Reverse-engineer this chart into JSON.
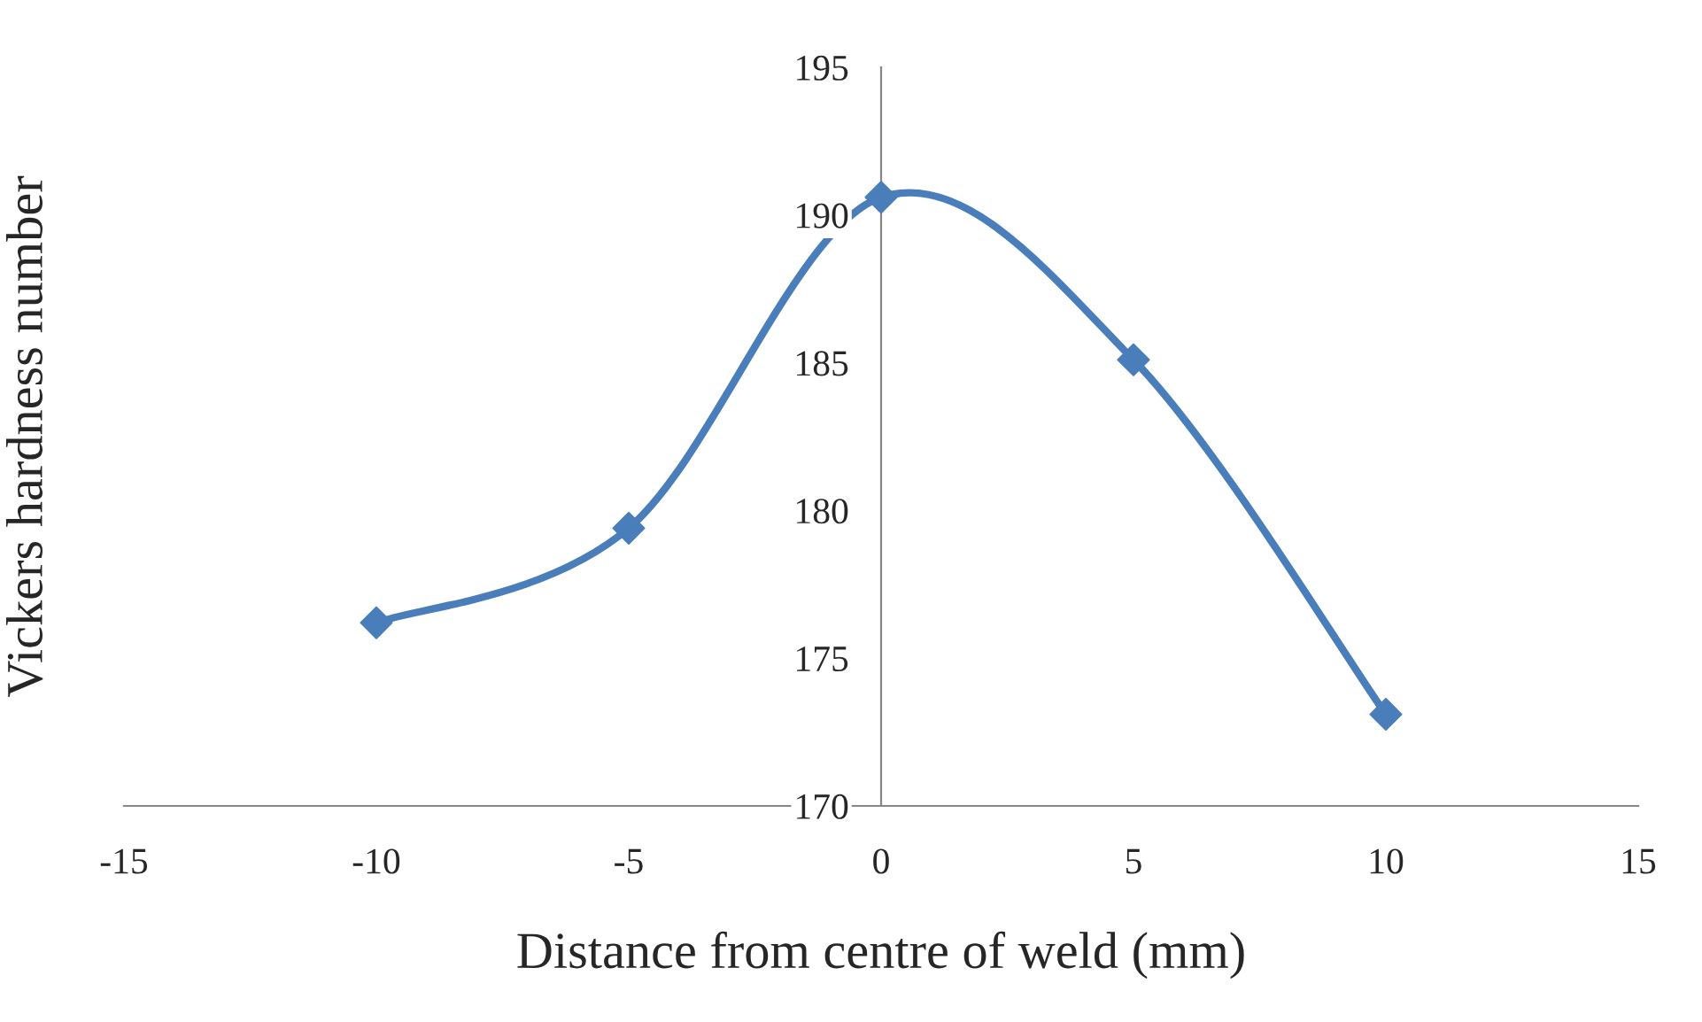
{
  "chart_data": {
    "type": "line",
    "xlabel": "Distance from centre of weld (mm)",
    "ylabel": "Vickers hardness number",
    "x": [
      -10,
      -5,
      0,
      5,
      10
    ],
    "series": [
      {
        "color": "#4a7ebb",
        "values": [
          176.2,
          179.4,
          190.6,
          185.1,
          173.1
        ]
      }
    ],
    "xlim": [
      -15,
      15
    ],
    "xticks": [
      -15,
      -10,
      -5,
      0,
      5,
      10,
      15
    ],
    "ylim": [
      170,
      195
    ],
    "yticks": [
      170,
      175,
      180,
      185,
      190,
      195
    ],
    "grid": false,
    "legend": false,
    "marker": "diamond",
    "line_style": "solid"
  }
}
